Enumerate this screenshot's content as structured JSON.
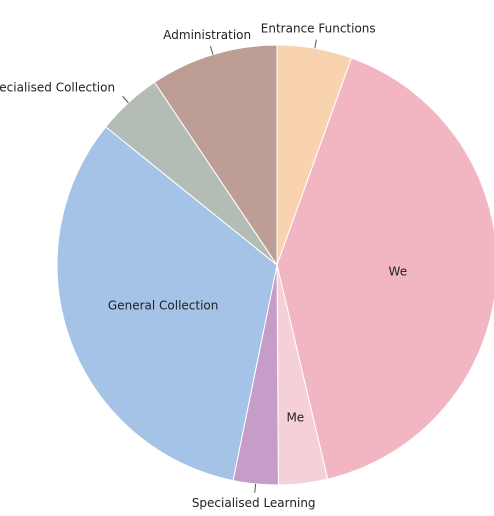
{
  "chart_data": {
    "type": "pie",
    "categories": [
      "Entrance Functions",
      "We",
      "Me",
      "Specialised Learning",
      "General Collection",
      "Specialised Collection",
      "Administration"
    ],
    "values": [
      5.5,
      40.8,
      3.6,
      3.3,
      32.6,
      4.8,
      9.4
    ],
    "colors": [
      "#f9d3b0",
      "#f2b6c2",
      "#f5d0d9",
      "#c59dc8",
      "#a5c3e6",
      "#b3bdb5",
      "#bc9e94"
    ]
  }
}
